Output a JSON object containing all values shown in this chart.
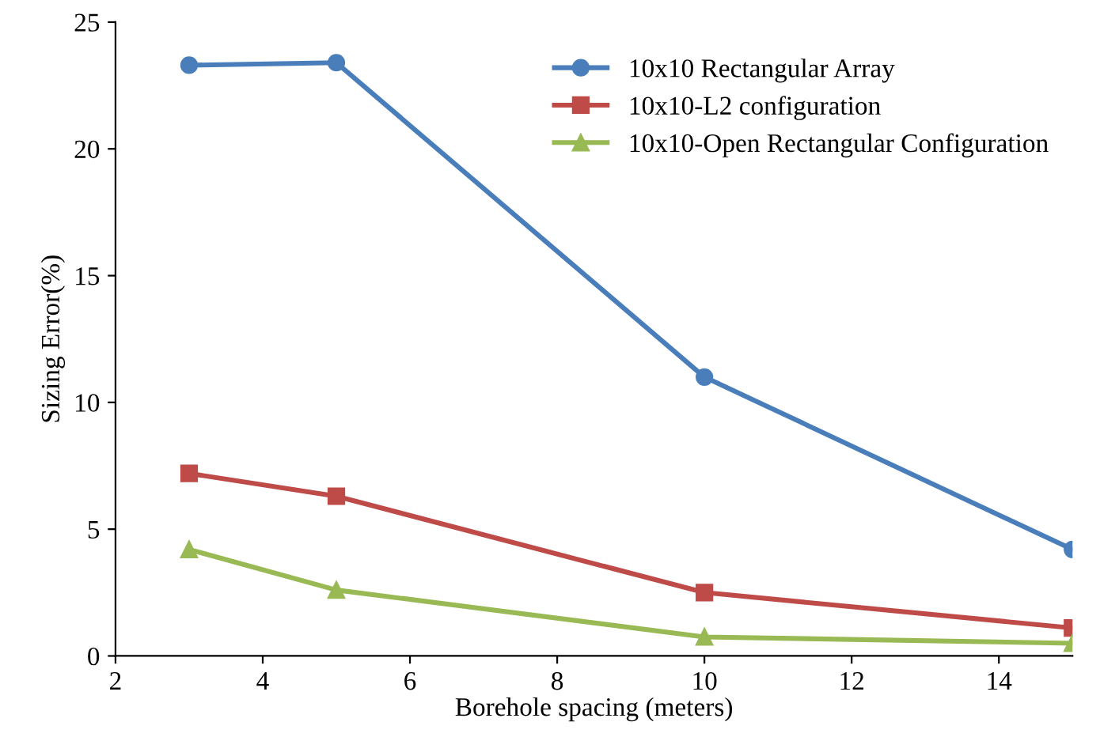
{
  "chart_data": {
    "type": "line",
    "xlabel": "Borehole spacing (meters)",
    "ylabel": "Sizing Error(%)",
    "x": [
      3,
      5,
      10,
      15
    ],
    "series": [
      {
        "name": "10x10 Rectangular Array",
        "color": "#4a7ebb",
        "values": [
          23.3,
          23.4,
          11.0,
          4.2
        ],
        "marker": "circle"
      },
      {
        "name": "10x10-L2 configuration",
        "color": "#be4b48",
        "values": [
          7.2,
          6.3,
          2.5,
          1.1
        ],
        "marker": "square"
      },
      {
        "name": "10x10-Open Rectangular Configuration",
        "color": "#98b954",
        "values": [
          4.2,
          2.6,
          0.75,
          0.5
        ],
        "marker": "triangle"
      }
    ],
    "xlim": [
      2,
      15
    ],
    "xticks": [
      2,
      4,
      6,
      8,
      10,
      12,
      14
    ],
    "ylim": [
      0,
      25
    ],
    "yticks": [
      0,
      5,
      10,
      15,
      20,
      25
    ],
    "grid": false,
    "legend": "top right",
    "line_style": "solid"
  }
}
